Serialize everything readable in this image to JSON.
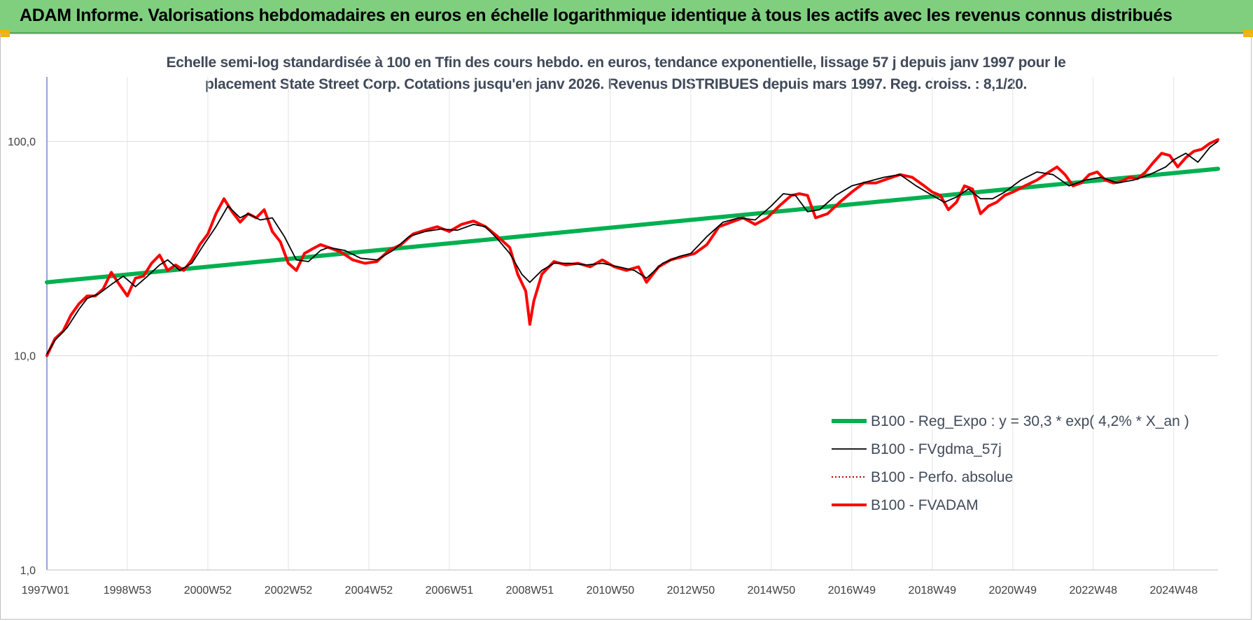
{
  "header": {
    "title": "ADAM Informe. Valorisations hebdomadaires en euros en échelle logarithmique identique à tous les actifs avec les revenus connus distribués"
  },
  "chart_data": {
    "type": "line",
    "subtitle_line1": "Echelle semi-log standardisée à 100 en Tfin des cours hebdo. en euros, tendance exponentielle, lissage 57 j depuis janv 1997 pour le",
    "subtitle_line2": "placement State Street Corp. Cotations jusqu'en janv 2026. Revenus DISTRIBUES depuis mars 1997. Reg. croiss. : 8,1/20.",
    "y_scale": "log",
    "ylim": [
      1,
      200
    ],
    "y_ticks": [
      {
        "value": 1,
        "label": "1,0"
      },
      {
        "value": 10,
        "label": "10,0"
      },
      {
        "value": 100,
        "label": "100,0"
      }
    ],
    "xlim": [
      1997.0,
      2026.1
    ],
    "x_ticks": [
      {
        "value": 1997.0,
        "label": "1997W01"
      },
      {
        "value": 1999.0,
        "label": "1998W53"
      },
      {
        "value": 2001.0,
        "label": "2000W52"
      },
      {
        "value": 2003.0,
        "label": "2002W52"
      },
      {
        "value": 2005.0,
        "label": "2004W52"
      },
      {
        "value": 2007.0,
        "label": "2006W51"
      },
      {
        "value": 2009.0,
        "label": "2008W51"
      },
      {
        "value": 2011.0,
        "label": "2010W50"
      },
      {
        "value": 2013.0,
        "label": "2012W50"
      },
      {
        "value": 2015.0,
        "label": "2014W50"
      },
      {
        "value": 2017.0,
        "label": "2016W49"
      },
      {
        "value": 2019.0,
        "label": "2018W49"
      },
      {
        "value": 2021.0,
        "label": "2020W49"
      },
      {
        "value": 2023.0,
        "label": "2022W48"
      },
      {
        "value": 2025.0,
        "label": "2024W48"
      }
    ],
    "grid": true,
    "legend_position": "bottom-right",
    "series": [
      {
        "name": "B100 - Reg_Expo : y = 30,3 * exp( 4,2% *  X_an )",
        "color": "#00b050",
        "style": "thick",
        "x": [
          1997.0,
          2026.1
        ],
        "values": [
          22.0,
          74.5
        ]
      },
      {
        "name": "B100 - FVgdma_57j",
        "color": "#000000",
        "style": "thin",
        "x": [
          1997.0,
          1997.2,
          1997.5,
          1997.8,
          1998.0,
          1998.3,
          1998.6,
          1998.9,
          1999.2,
          1999.5,
          1999.8,
          2000.0,
          2000.3,
          2000.6,
          2000.9,
          2001.2,
          2001.5,
          2001.8,
          2002.0,
          2002.3,
          2002.6,
          2002.9,
          2003.2,
          2003.5,
          2003.8,
          2004.0,
          2004.4,
          2004.8,
          2005.2,
          2005.6,
          2006.0,
          2006.4,
          2006.8,
          2007.2,
          2007.6,
          2007.9,
          2008.2,
          2008.5,
          2008.8,
          2009.0,
          2009.3,
          2009.6,
          2010.0,
          2010.4,
          2010.8,
          2011.2,
          2011.6,
          2011.9,
          2012.3,
          2012.7,
          2013.0,
          2013.4,
          2013.8,
          2014.2,
          2014.6,
          2015.0,
          2015.3,
          2015.6,
          2015.9,
          2016.2,
          2016.6,
          2017.0,
          2017.4,
          2017.8,
          2018.2,
          2018.6,
          2019.0,
          2019.3,
          2019.6,
          2019.9,
          2020.2,
          2020.5,
          2020.8,
          2021.2,
          2021.6,
          2022.0,
          2022.4,
          2022.8,
          2023.2,
          2023.6,
          2024.0,
          2024.4,
          2024.8,
          2025.0,
          2025.3,
          2025.6,
          2025.9,
          2026.1
        ],
        "values": [
          10.2,
          11.8,
          13.5,
          16.5,
          18.5,
          19.5,
          21.5,
          23.5,
          21.0,
          23.5,
          26.5,
          28.0,
          25.0,
          27.0,
          33.0,
          40.0,
          50.0,
          44.0,
          46.0,
          43.0,
          44.0,
          36.0,
          28.0,
          27.5,
          31.0,
          32.0,
          31.0,
          28.5,
          28.0,
          31.0,
          36.0,
          38.0,
          39.0,
          38.5,
          41.0,
          40.0,
          35.0,
          30.0,
          24.0,
          22.0,
          25.0,
          27.0,
          27.0,
          26.5,
          27.0,
          26.0,
          25.0,
          23.0,
          27.0,
          29.0,
          30.0,
          36.0,
          42.0,
          44.0,
          43.0,
          50.0,
          57.0,
          56.0,
          47.0,
          48.0,
          56.0,
          62.0,
          65.0,
          68.0,
          70.0,
          62.0,
          56.0,
          52.0,
          55.0,
          60.0,
          54.0,
          54.0,
          58.0,
          66.0,
          72.0,
          70.0,
          62.0,
          66.0,
          68.0,
          64.0,
          66.0,
          70.0,
          76.0,
          82.0,
          88.0,
          80.0,
          94.0,
          100.0
        ]
      },
      {
        "name": "B100 - Perfo. absolue",
        "color": "#c00000",
        "style": "dotted",
        "x": [
          1997.0,
          2026.1
        ],
        "values": [
          10.0,
          100.0
        ]
      },
      {
        "name": "B100 - FVADAM",
        "color": "#ff0000",
        "style": "thick",
        "x": [
          1997.0,
          1997.2,
          1997.4,
          1997.6,
          1997.8,
          1998.0,
          1998.2,
          1998.4,
          1998.6,
          1998.8,
          1999.0,
          1999.2,
          1999.4,
          1999.6,
          1999.8,
          2000.0,
          2000.2,
          2000.4,
          2000.6,
          2000.8,
          2001.0,
          2001.2,
          2001.4,
          2001.6,
          2001.8,
          2002.0,
          2002.2,
          2002.4,
          2002.6,
          2002.8,
          2003.0,
          2003.2,
          2003.4,
          2003.6,
          2003.8,
          2004.0,
          2004.3,
          2004.6,
          2004.9,
          2005.2,
          2005.5,
          2005.8,
          2006.1,
          2006.4,
          2006.7,
          2007.0,
          2007.3,
          2007.6,
          2007.9,
          2008.2,
          2008.5,
          2008.7,
          2008.9,
          2009.0,
          2009.1,
          2009.3,
          2009.6,
          2009.9,
          2010.2,
          2010.5,
          2010.8,
          2011.1,
          2011.4,
          2011.7,
          2011.9,
          2012.2,
          2012.5,
          2012.8,
          2013.1,
          2013.4,
          2013.7,
          2014.0,
          2014.3,
          2014.6,
          2014.9,
          2015.2,
          2015.5,
          2015.7,
          2015.9,
          2016.1,
          2016.4,
          2016.7,
          2017.0,
          2017.3,
          2017.6,
          2017.9,
          2018.2,
          2018.5,
          2018.8,
          2019.0,
          2019.2,
          2019.4,
          2019.6,
          2019.8,
          2020.0,
          2020.2,
          2020.4,
          2020.6,
          2020.8,
          2021.0,
          2021.3,
          2021.6,
          2021.9,
          2022.1,
          2022.3,
          2022.5,
          2022.7,
          2022.9,
          2023.1,
          2023.3,
          2023.5,
          2023.7,
          2023.9,
          2024.1,
          2024.3,
          2024.5,
          2024.7,
          2024.9,
          2025.1,
          2025.3,
          2025.5,
          2025.7,
          2025.9,
          2026.1
        ],
        "values": [
          10.0,
          12.0,
          13.0,
          15.5,
          17.5,
          19.0,
          19.0,
          20.5,
          24.5,
          21.5,
          19.0,
          23.0,
          23.5,
          27.0,
          29.5,
          25.0,
          26.5,
          25.0,
          28.0,
          33.0,
          37.0,
          46.0,
          54.0,
          47.0,
          42.0,
          46.0,
          44.0,
          48.0,
          38.0,
          34.0,
          27.0,
          25.0,
          30.0,
          31.5,
          33.0,
          32.0,
          30.5,
          28.0,
          27.0,
          27.5,
          31.0,
          33.0,
          37.0,
          38.5,
          40.0,
          38.0,
          41.0,
          42.5,
          40.0,
          36.0,
          32.0,
          24.0,
          20.0,
          14.0,
          18.0,
          24.0,
          27.5,
          26.5,
          27.0,
          26.0,
          28.0,
          26.0,
          25.0,
          26.0,
          22.0,
          26.0,
          28.0,
          29.0,
          30.0,
          33.0,
          40.0,
          42.0,
          44.0,
          41.0,
          44.0,
          50.0,
          56.0,
          57.0,
          56.0,
          44.0,
          46.0,
          52.0,
          58.0,
          64.0,
          64.0,
          67.0,
          70.0,
          68.0,
          62.0,
          58.0,
          56.0,
          48.0,
          52.0,
          62.0,
          60.0,
          46.0,
          50.0,
          52.0,
          56.0,
          58.0,
          62.0,
          66.0,
          72.0,
          76.0,
          70.0,
          62.0,
          64.0,
          70.0,
          72.0,
          66.0,
          64.0,
          65.0,
          68.0,
          67.0,
          72.0,
          80.0,
          88.0,
          86.0,
          76.0,
          84.0,
          90.0,
          92.0,
          98.0,
          102.0
        ]
      }
    ]
  }
}
